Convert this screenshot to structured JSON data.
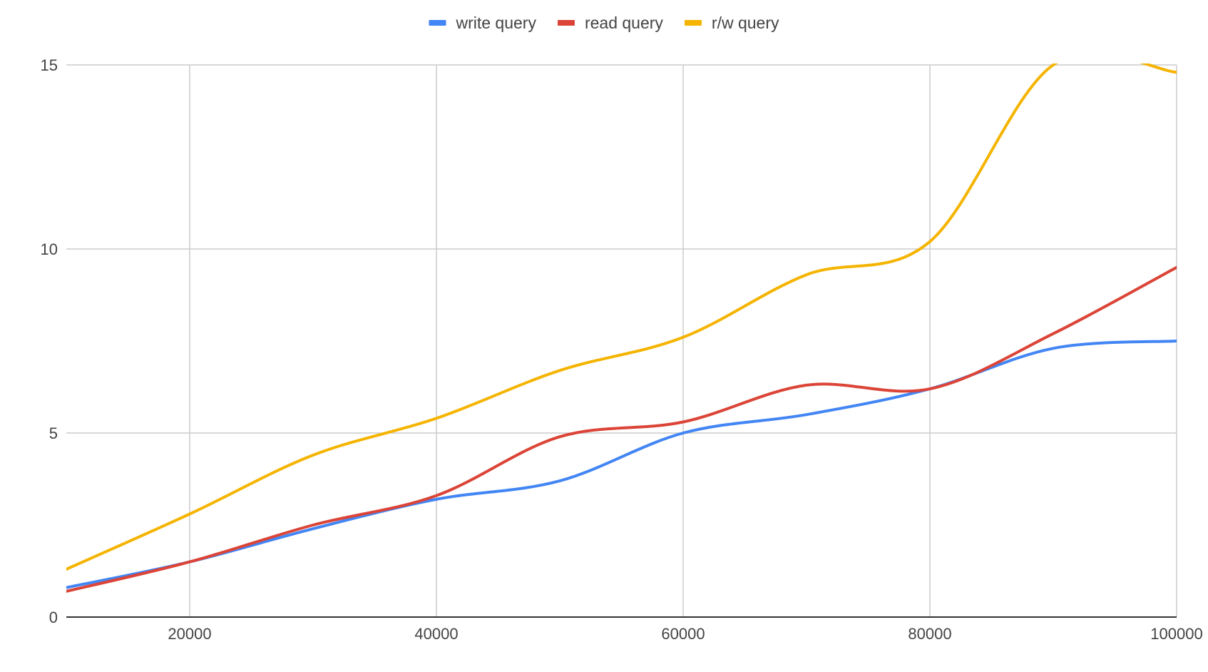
{
  "chart_data": {
    "type": "line",
    "title": "",
    "xlabel": "",
    "ylabel": "",
    "xlim": [
      10000,
      100000
    ],
    "ylim": [
      0,
      15
    ],
    "x_ticks": [
      20000,
      40000,
      60000,
      80000,
      100000
    ],
    "y_ticks": [
      0,
      5,
      10,
      15
    ],
    "grid": true,
    "legend_position": "top",
    "x": [
      10000,
      20000,
      30000,
      40000,
      50000,
      60000,
      70000,
      80000,
      90000,
      100000
    ],
    "series": [
      {
        "name": "write query",
        "color": "#4285f4",
        "values": [
          0.8,
          1.5,
          2.4,
          3.2,
          3.7,
          5.0,
          5.5,
          6.2,
          7.3,
          7.5
        ]
      },
      {
        "name": "read query",
        "color": "#db4437",
        "values": [
          0.7,
          1.5,
          2.5,
          3.3,
          4.9,
          5.3,
          6.3,
          6.2,
          7.7,
          9.5
        ]
      },
      {
        "name": "r/w query",
        "color": "#f4b400",
        "values": [
          1.3,
          2.8,
          4.4,
          5.4,
          6.7,
          7.6,
          9.3,
          10.2,
          15.0,
          14.8
        ]
      }
    ]
  }
}
